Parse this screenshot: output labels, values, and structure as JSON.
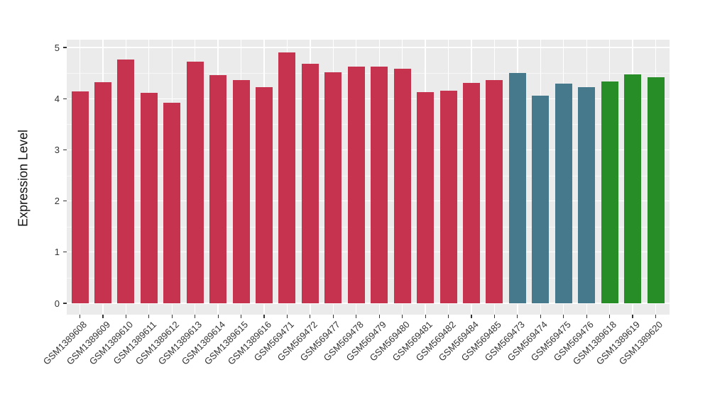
{
  "chart_data": {
    "type": "bar",
    "title": "",
    "xlabel": "",
    "ylabel": "Expression Level",
    "ylim": [
      0,
      5
    ],
    "yticks": [
      0,
      1,
      2,
      3,
      4,
      5
    ],
    "y_minor_ticks": [
      0.5,
      1.5,
      2.5,
      3.5,
      4.5
    ],
    "grid": true,
    "legend_position": "none",
    "panel_background": "#EBEBEB",
    "grid_color": "#FFFFFF",
    "tick_color": "#333333",
    "palette": {
      "group1": "#C5334F",
      "group2": "#45798B",
      "group3": "#278E27"
    },
    "series": [
      {
        "label": "GSM1389608",
        "value": 4.14,
        "group": "group1"
      },
      {
        "label": "GSM1389609",
        "value": 4.32,
        "group": "group1"
      },
      {
        "label": "GSM1389610",
        "value": 4.77,
        "group": "group1"
      },
      {
        "label": "GSM1389611",
        "value": 4.12,
        "group": "group1"
      },
      {
        "label": "GSM1389612",
        "value": 3.92,
        "group": "group1"
      },
      {
        "label": "GSM1389613",
        "value": 4.73,
        "group": "group1"
      },
      {
        "label": "GSM1389614",
        "value": 4.46,
        "group": "group1"
      },
      {
        "label": "GSM1389615",
        "value": 4.36,
        "group": "group1"
      },
      {
        "label": "GSM1389616",
        "value": 4.22,
        "group": "group1"
      },
      {
        "label": "GSM569471",
        "value": 4.9,
        "group": "group1"
      },
      {
        "label": "GSM569472",
        "value": 4.68,
        "group": "group1"
      },
      {
        "label": "GSM569477",
        "value": 4.51,
        "group": "group1"
      },
      {
        "label": "GSM569478",
        "value": 4.63,
        "group": "group1"
      },
      {
        "label": "GSM569479",
        "value": 4.63,
        "group": "group1"
      },
      {
        "label": "GSM569480",
        "value": 4.59,
        "group": "group1"
      },
      {
        "label": "GSM569481",
        "value": 4.13,
        "group": "group1"
      },
      {
        "label": "GSM569482",
        "value": 4.15,
        "group": "group1"
      },
      {
        "label": "GSM569484",
        "value": 4.31,
        "group": "group1"
      },
      {
        "label": "GSM569485",
        "value": 4.36,
        "group": "group1"
      },
      {
        "label": "GSM569473",
        "value": 4.5,
        "group": "group2"
      },
      {
        "label": "GSM569474",
        "value": 4.06,
        "group": "group2"
      },
      {
        "label": "GSM569475",
        "value": 4.29,
        "group": "group2"
      },
      {
        "label": "GSM569476",
        "value": 4.23,
        "group": "group2"
      },
      {
        "label": "GSM1389618",
        "value": 4.34,
        "group": "group3"
      },
      {
        "label": "GSM1389619",
        "value": 4.48,
        "group": "group3"
      },
      {
        "label": "GSM1389620",
        "value": 4.42,
        "group": "group3"
      }
    ]
  }
}
